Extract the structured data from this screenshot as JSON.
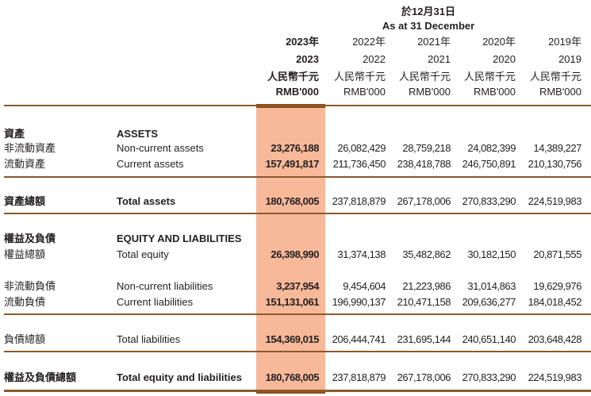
{
  "header": {
    "date_zh": "於12月31日",
    "date_en": "As at 31 December",
    "columns": [
      {
        "year_zh": "2023年",
        "year": "2023",
        "unit_zh": "人民幣千元",
        "unit_en": "RMB'000"
      },
      {
        "year_zh": "2022年",
        "year": "2022",
        "unit_zh": "人民幣千元",
        "unit_en": "RMB'000"
      },
      {
        "year_zh": "2021年",
        "year": "2021",
        "unit_zh": "人民幣千元",
        "unit_en": "RMB'000"
      },
      {
        "year_zh": "2020年",
        "year": "2020",
        "unit_zh": "人民幣千元",
        "unit_en": "RMB'000"
      },
      {
        "year_zh": "2019年",
        "year": "2019",
        "unit_zh": "人民幣千元",
        "unit_en": "RMB'000"
      }
    ]
  },
  "highlight_color": "#f7b99a",
  "rule_color": "#8a5a2b",
  "rows": [
    {
      "zh": "資產",
      "en": "ASSETS",
      "bold": true,
      "values": []
    },
    {
      "zh": "非流動資產",
      "en": "Non-current assets",
      "bold": false,
      "values": [
        "23,276,188",
        "26,082,429",
        "28,759,218",
        "24,082,399",
        "14,389,227"
      ]
    },
    {
      "zh": "流動資產",
      "en": "Current assets",
      "bold": false,
      "values": [
        "157,491,817",
        "211,736,450",
        "238,418,788",
        "246,750,891",
        "210,130,756"
      ]
    },
    {
      "zh": "資產總額",
      "en": "Total assets",
      "bold": true,
      "values": [
        "180,768,005",
        "237,818,879",
        "267,178,006",
        "270,833,290",
        "224,519,983"
      ]
    },
    {
      "zh": "權益及負債",
      "en": "EQUITY AND LIABILITIES",
      "bold": true,
      "values": []
    },
    {
      "zh": "權益總額",
      "en": "Total equity",
      "bold": false,
      "values": [
        "26,398,990",
        "31,374,138",
        "35,482,862",
        "30,182,150",
        "20,871,555"
      ]
    },
    {
      "zh": "非流動負債",
      "en": "Non-current liabilities",
      "bold": false,
      "values": [
        "3,237,954",
        "9,454,604",
        "21,223,986",
        "31,014,863",
        "19,629,976"
      ]
    },
    {
      "zh": "流動負債",
      "en": "Current liabilities",
      "bold": false,
      "values": [
        "151,131,061",
        "196,990,137",
        "210,471,158",
        "209,636,277",
        "184,018,452"
      ]
    },
    {
      "zh": "負債總額",
      "en": "Total liabilities",
      "bold": false,
      "values": [
        "154,369,015",
        "206,444,741",
        "231,695,144",
        "240,651,140",
        "203,648,428"
      ]
    },
    {
      "zh": "權益及負債總額",
      "en": "Total equity and liabilities",
      "bold": true,
      "values": [
        "180,768,005",
        "237,818,879",
        "267,178,006",
        "270,833,290",
        "224,519,983"
      ]
    }
  ]
}
